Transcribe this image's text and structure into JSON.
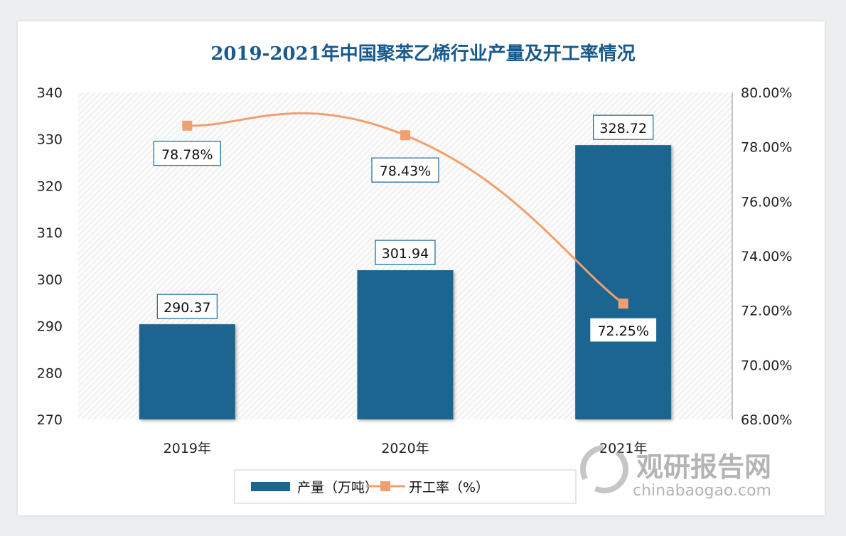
{
  "chart_data": {
    "type": "bar+line",
    "title": "2019-2021年中国聚苯乙烯行业产量及开工率情况",
    "categories": [
      "2019年",
      "2020年",
      "2021年"
    ],
    "series": [
      {
        "name": "产量（万吨）",
        "type": "bar",
        "axis": "left",
        "values": [
          290.37,
          301.94,
          328.72
        ],
        "labels": [
          "290.37",
          "301.94",
          "328.72"
        ],
        "color": "#1b6591"
      },
      {
        "name": "开工率（%）",
        "type": "line",
        "axis": "right",
        "values": [
          78.78,
          78.43,
          72.25
        ],
        "labels": [
          "78.78%",
          "78.43%",
          "72.25%"
        ],
        "color": "#f0a070"
      }
    ],
    "y_left": {
      "range": [
        270,
        340
      ],
      "ticks": [
        "270",
        "280",
        "290",
        "300",
        "310",
        "320",
        "330",
        "340"
      ]
    },
    "y_right": {
      "range": [
        68,
        80
      ],
      "ticks": [
        "68.00%",
        "70.00%",
        "72.00%",
        "74.00%",
        "76.00%",
        "78.00%",
        "80.00%"
      ]
    },
    "grid": false,
    "legend_placement": "bottom"
  },
  "watermark": {
    "logo_text": "观研报告网",
    "url_text": "chinabaogao.com"
  },
  "colors": {
    "title": "#1a5a8c",
    "bar": "#1b6591",
    "line": "#f0a070"
  }
}
